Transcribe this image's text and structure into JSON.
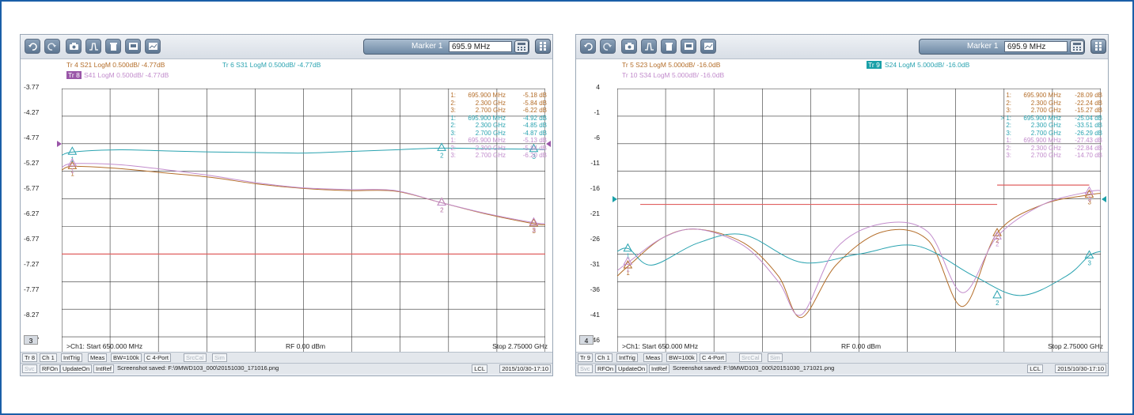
{
  "windows": [
    {
      "marker_label": "Marker 1",
      "marker_value": "695.9 MHz",
      "traces_line1": [
        {
          "label": "Tr 4  S21 LogM 0.500dB/ -4.77dB",
          "color": "#b46e2a"
        },
        {
          "label": "Tr 6  S31 LogM 0.500dB/ -4.77dB",
          "color": "#2aa3b0"
        }
      ],
      "traces_line2": [
        {
          "label": "Tr 8",
          "color": "#fff",
          "highlight": "#9a56a8"
        },
        {
          "label": "S41 LogM 0.500dB/ -4.77dB",
          "color": "#c28ccc"
        }
      ],
      "y_ticks": [
        "-3.77",
        "-4.27",
        "-4.77",
        "-5.27",
        "-5.77",
        "-6.27",
        "-6.77",
        "-7.27",
        "-7.77",
        "-8.27",
        "-8.77"
      ],
      "marker_table": [
        {
          "n": "1:",
          "f": "695.900 MHz",
          "v": "-5.18 dB",
          "c": "#b46e2a"
        },
        {
          "n": "2:",
          "f": "2.300 GHz",
          "v": "-5.84 dB",
          "c": "#b46e2a"
        },
        {
          "n": "3:",
          "f": "2.700 GHz",
          "v": "-6.22 dB",
          "c": "#b46e2a"
        },
        {
          "n": "1:",
          "f": "695.900 MHz",
          "v": "-4.92 dB",
          "c": "#2aa3b0"
        },
        {
          "n": "2:",
          "f": "2.300 GHz",
          "v": "-4.85 dB",
          "c": "#2aa3b0"
        },
        {
          "n": "3:",
          "f": "2.700 GHz",
          "v": "-4.87 dB",
          "c": "#2aa3b0"
        },
        {
          "n": "1:",
          "f": "695.900 MHz",
          "v": "-5.13 dB",
          "c": "#c28ccc"
        },
        {
          "n": "2:",
          "f": "2.300 GHz",
          "v": "-5.84 dB",
          "c": "#c28ccc"
        },
        {
          "n": "3:",
          "f": "2.700 GHz",
          "v": "-6.20 dB",
          "c": "#c28ccc"
        }
      ],
      "channel_num": "3",
      "start": ">Ch1:  Start  650.000 MHz",
      "rf": "RF  0.00 dBm",
      "stop": "Stop  2.75000 GHz",
      "status1": [
        "Tr 8",
        "Ch 1",
        "IntTrig",
        "Meas",
        "BW=100k",
        "C  4-Port",
        "SrcCal",
        "Sim"
      ],
      "status2": [
        "Svc",
        "RFOn",
        "UpdateOn",
        "IntRef",
        "Screenshot saved: F:\\9MWD103_000\\20151030_171016.png"
      ],
      "lcl": "LCL",
      "datetime": "2015/10/30-17:10"
    },
    {
      "marker_label": "Marker 1",
      "marker_value": "695.9 MHz",
      "traces_line1": [
        {
          "label": "Tr 5  S23 LogM 5.000dB/ -16.0dB",
          "color": "#b46e2a"
        },
        {
          "label": "Tr 9",
          "color": "#fff",
          "highlight": "#1aa0a8"
        },
        {
          "label": "S24 LogM 5.000dB/ -16.0dB",
          "color": "#2aa3b0"
        }
      ],
      "traces_line2": [
        {
          "label": "Tr 10  S34 LogM 5.000dB/ -16.0dB",
          "color": "#c28ccc"
        }
      ],
      "y_ticks": [
        "4",
        "-1",
        "-6",
        "-11",
        "-16",
        "-21",
        "-26",
        "-31",
        "-36",
        "-41",
        "-46"
      ],
      "marker_table": [
        {
          "n": "1:",
          "f": "695.900 MHz",
          "v": "-28.09 dB",
          "c": "#b46e2a"
        },
        {
          "n": "2:",
          "f": "2.300 GHz",
          "v": "-22.24 dB",
          "c": "#b46e2a"
        },
        {
          "n": "3:",
          "f": "2.700 GHz",
          "v": "-15.27 dB",
          "c": "#b46e2a"
        },
        {
          "n": "> 1:",
          "f": "695.900 MHz",
          "v": "-25.04 dB",
          "c": "#2aa3b0"
        },
        {
          "n": "2:",
          "f": "2.300 GHz",
          "v": "-33.51 dB",
          "c": "#2aa3b0"
        },
        {
          "n": "3:",
          "f": "2.700 GHz",
          "v": "-26.29 dB",
          "c": "#2aa3b0"
        },
        {
          "n": "1:",
          "f": "695.900 MHz",
          "v": "-27.43 dB",
          "c": "#c28ccc"
        },
        {
          "n": "2:",
          "f": "2.300 GHz",
          "v": "-22.84 dB",
          "c": "#c28ccc"
        },
        {
          "n": "3:",
          "f": "2.700 GHz",
          "v": "-14.70 dB",
          "c": "#c28ccc"
        }
      ],
      "channel_num": "4",
      "start": ">Ch1:  Start  650.000 MHz",
      "rf": "RF  0.00 dBm",
      "stop": "Stop  2.75000 GHz",
      "status1": [
        "Tr 9",
        "Ch 1",
        "IntTrig",
        "Meas",
        "BW=100k",
        "C  4-Port",
        "SrcCal",
        "Sim"
      ],
      "status2": [
        "Svc",
        "RFOn",
        "UpdateOn",
        "IntRef",
        "Screenshot saved: F:\\9MWD103_000\\20151030_171021.png"
      ],
      "lcl": "LCL",
      "datetime": "2015/10/30-17:10"
    }
  ],
  "chart_data": [
    {
      "type": "line",
      "xlabel": "",
      "ylabel": "",
      "x_range_hz": [
        650000000,
        2750000000
      ],
      "ylim": [
        -8.77,
        -3.77
      ],
      "reference_level": -4.77,
      "series": [
        {
          "name": "S21",
          "color": "#b46e2a",
          "x": [
            0.65,
            0.7,
            0.9,
            1.1,
            1.3,
            1.5,
            1.7,
            1.9,
            2.1,
            2.3,
            2.5,
            2.7,
            2.75
          ],
          "y": [
            -5.25,
            -5.18,
            -5.22,
            -5.3,
            -5.38,
            -5.5,
            -5.58,
            -5.62,
            -5.63,
            -5.84,
            -6.05,
            -6.22,
            -6.24
          ]
        },
        {
          "name": "S31",
          "color": "#2aa3b0",
          "x": [
            0.65,
            0.7,
            0.9,
            1.1,
            1.3,
            1.5,
            1.7,
            1.9,
            2.1,
            2.3,
            2.5,
            2.7,
            2.75
          ],
          "y": [
            -4.98,
            -4.92,
            -4.88,
            -4.9,
            -4.92,
            -4.93,
            -4.94,
            -4.91,
            -4.88,
            -4.85,
            -4.86,
            -4.87,
            -4.88
          ]
        },
        {
          "name": "S41",
          "color": "#c28ccc",
          "x": [
            0.65,
            0.7,
            0.9,
            1.1,
            1.3,
            1.5,
            1.7,
            1.9,
            2.1,
            2.3,
            2.5,
            2.7,
            2.75
          ],
          "y": [
            -5.2,
            -5.13,
            -5.15,
            -5.24,
            -5.35,
            -5.48,
            -5.57,
            -5.6,
            -5.62,
            -5.84,
            -6.04,
            -6.2,
            -6.22
          ]
        }
      ],
      "limit_lines": [
        {
          "y": -6.77,
          "color": "#e06060"
        }
      ]
    },
    {
      "type": "line",
      "xlabel": "",
      "ylabel": "",
      "x_range_hz": [
        650000000,
        2750000000
      ],
      "ylim": [
        -46,
        4
      ],
      "reference_level": -16,
      "series": [
        {
          "name": "S23",
          "color": "#b46e2a",
          "x": [
            0.65,
            0.7,
            0.85,
            1.0,
            1.2,
            1.35,
            1.45,
            1.6,
            1.8,
            2.0,
            2.15,
            2.3,
            2.5,
            2.7,
            2.75
          ],
          "y": [
            -30,
            -28.1,
            -23,
            -21.5,
            -24,
            -30,
            -37.5,
            -28,
            -22,
            -23.5,
            -35.5,
            -22.2,
            -17,
            -15.27,
            -15
          ]
        },
        {
          "name": "S24",
          "color": "#2aa3b0",
          "x": [
            0.65,
            0.7,
            0.8,
            1.0,
            1.2,
            1.45,
            1.7,
            1.95,
            2.2,
            2.4,
            2.6,
            2.7,
            2.75
          ],
          "y": [
            -25.5,
            -25.04,
            -28,
            -24,
            -22.5,
            -27.5,
            -26,
            -24.5,
            -30,
            -33.51,
            -30,
            -26.29,
            -25.5
          ]
        },
        {
          "name": "S34",
          "color": "#c28ccc",
          "x": [
            0.65,
            0.7,
            0.85,
            1.0,
            1.2,
            1.35,
            1.45,
            1.6,
            1.8,
            2.0,
            2.15,
            2.3,
            2.5,
            2.7,
            2.75
          ],
          "y": [
            -29,
            -27.43,
            -23,
            -21.5,
            -24.5,
            -31,
            -37,
            -25,
            -20.5,
            -22,
            -33,
            -22.84,
            -17,
            -14.7,
            -14.5
          ]
        }
      ],
      "limit_lines": [
        {
          "x0": 0.75,
          "x1": 2.3,
          "y": -17,
          "color": "#e06060"
        },
        {
          "x0": 2.3,
          "x1": 2.7,
          "y": -13.5,
          "color": "#e06060"
        }
      ]
    }
  ]
}
